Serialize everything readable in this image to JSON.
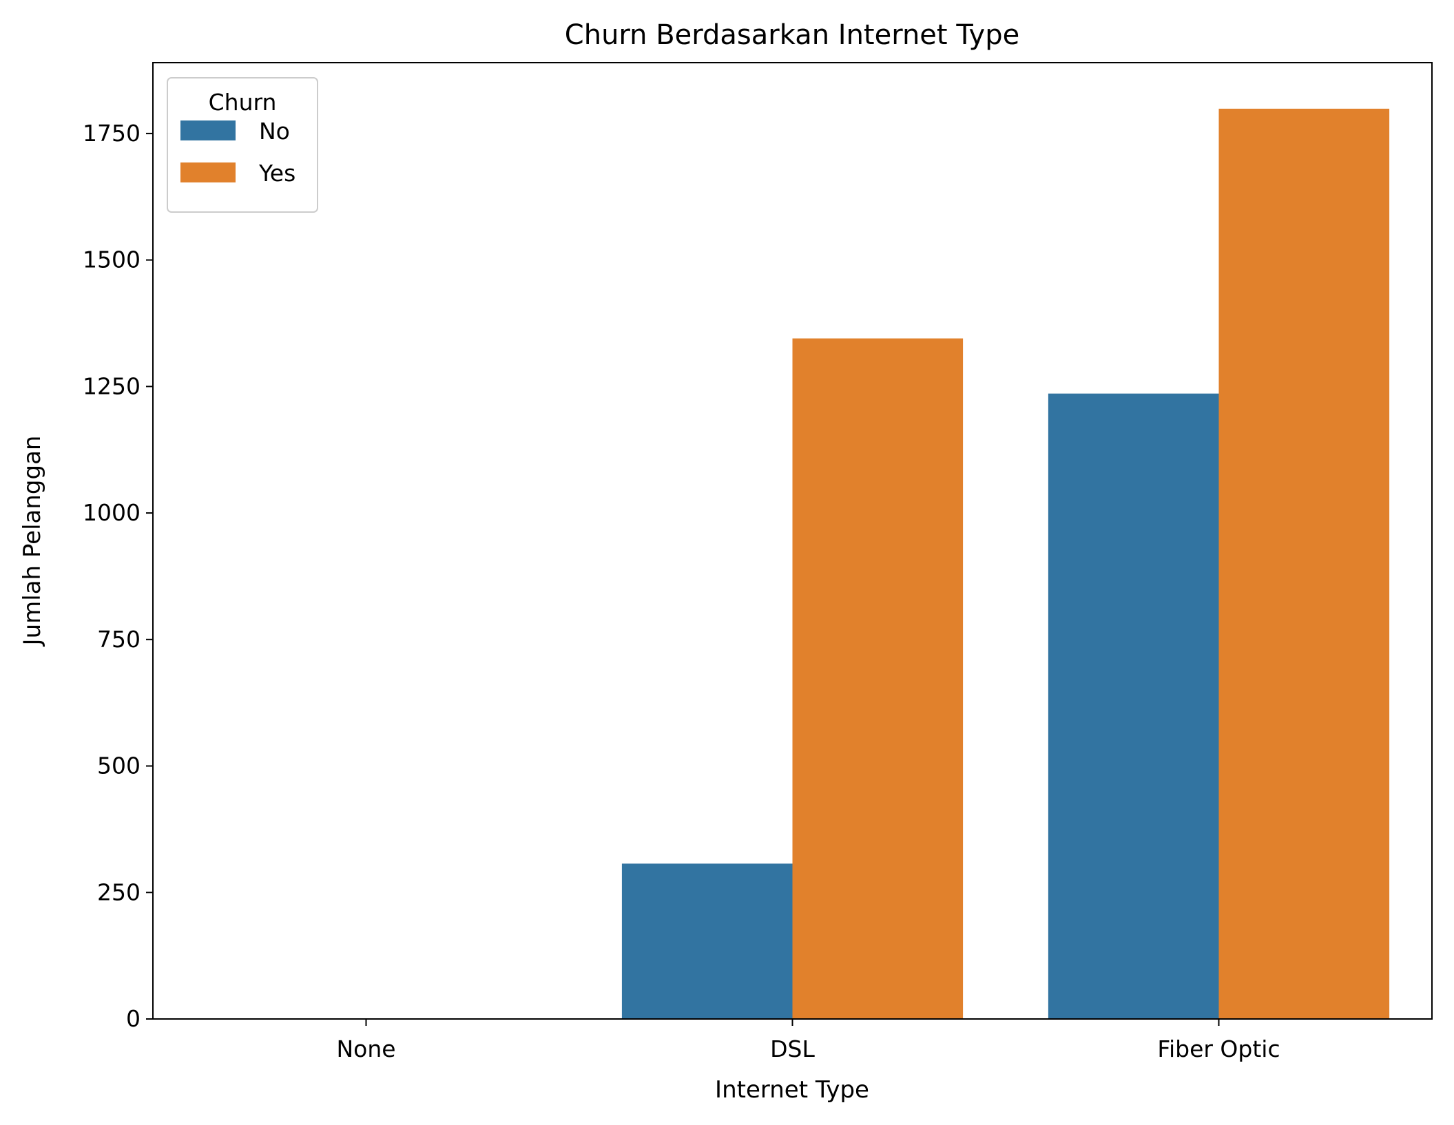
{
  "chart_data": {
    "type": "bar",
    "title": "Churn Berdasarkan Internet Type",
    "xlabel": "Internet Type",
    "ylabel": "Jumlah Pelanggan",
    "categories": [
      "None",
      "DSL",
      "Fiber Optic"
    ],
    "series": [
      {
        "name": "No",
        "values": [
          0,
          307,
          1236
        ],
        "color": "#3274a1"
      },
      {
        "name": "Yes",
        "values": [
          0,
          1345,
          1799
        ],
        "color": "#e1812c"
      }
    ],
    "ylim": [
      0,
      1890
    ],
    "yticks": [
      0,
      250,
      500,
      750,
      1000,
      1250,
      1500,
      1750
    ],
    "legend": {
      "title": "Churn",
      "placement": "top-left"
    },
    "grid": false
  }
}
